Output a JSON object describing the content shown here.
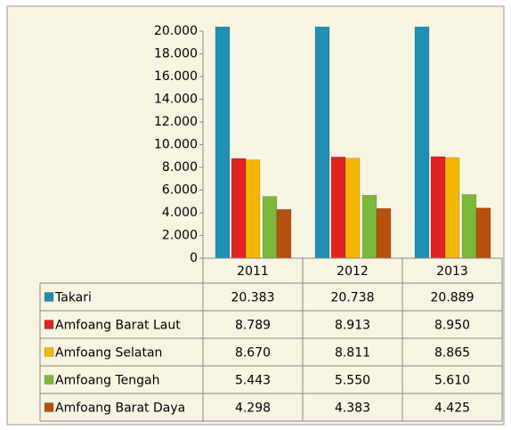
{
  "chart_data": {
    "type": "bar",
    "categories": [
      "2011",
      "2012",
      "2013"
    ],
    "series": [
      {
        "name": "Takari",
        "color": "#1f8fb2",
        "values": [
          20383,
          20738,
          20889
        ],
        "value_labels": [
          "20.383",
          "20.738",
          "20.889"
        ]
      },
      {
        "name": "Amfoang Barat Laut",
        "color": "#e02222",
        "values": [
          8789,
          8913,
          8950
        ],
        "value_labels": [
          "8.789",
          "8.913",
          "8.950"
        ]
      },
      {
        "name": "Amfoang Selatan",
        "color": "#f2b600",
        "values": [
          8670,
          8811,
          8865
        ],
        "value_labels": [
          "8.670",
          "8.811",
          "8.865"
        ]
      },
      {
        "name": "Amfoang Tengah",
        "color": "#7cb83a",
        "values": [
          5443,
          5550,
          5610
        ],
        "value_labels": [
          "5.443",
          "5.550",
          "5.610"
        ]
      },
      {
        "name": "Amfoang Barat Daya",
        "color": "#b4520e",
        "values": [
          4298,
          4383,
          4425
        ],
        "value_labels": [
          "4.298",
          "4.383",
          "4.425"
        ]
      }
    ],
    "ylim": [
      0,
      20000
    ],
    "yticks": [
      0,
      {
        "value": 2000,
        "label": "2.000"
      },
      {
        "value": 4000,
        "label": "4.000"
      },
      {
        "value": 6000,
        "label": "6.000"
      },
      {
        "value": 8000,
        "label": "8.000"
      },
      {
        "value": 10000,
        "label": "10.000"
      },
      {
        "value": 12000,
        "label": "12.000"
      },
      {
        "value": 14000,
        "label": "14.000"
      },
      {
        "value": 16000,
        "label": "16.000"
      },
      {
        "value": 18000,
        "label": "18.000"
      },
      {
        "value": 20000,
        "label": "20.000"
      }
    ],
    "grid": false
  }
}
